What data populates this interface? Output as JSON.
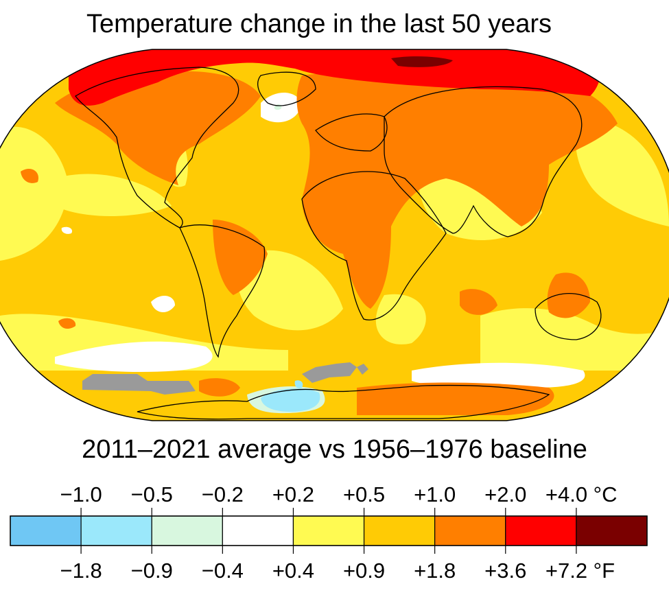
{
  "title": "Temperature change in the last 50 years",
  "subtitle": "2011–2021 average vs 1956–1976 baseline",
  "legend": {
    "celsius_labels": [
      "−1.0",
      "−0.5",
      "−0.2",
      "+0.2",
      "+0.5",
      "+1.0",
      "+2.0",
      "+4.0 °C"
    ],
    "fahrenheit_labels": [
      "−1.8",
      "−0.9",
      "−0.4",
      "+0.4",
      "+0.9",
      "+1.8",
      "+3.6",
      "+7.2 °F"
    ],
    "bins": [
      {
        "color": "#6fc7f4"
      },
      {
        "color": "#9be8fb"
      },
      {
        "color": "#d8f7df"
      },
      {
        "color": "#ffffff"
      },
      {
        "color": "#fffa52"
      },
      {
        "color": "#ffcb05"
      },
      {
        "color": "#ff7f00"
      },
      {
        "color": "#ff0000"
      },
      {
        "color": "#7a0000"
      }
    ]
  },
  "map_colors": {
    "ocean_base": "#ffcb05",
    "mild": "#fffa52",
    "strong": "#ff7f00",
    "extreme": "#ff0000",
    "max": "#7a0000",
    "neutral": "#ffffff",
    "slight_cool": "#d8f7df",
    "cool": "#9be8fb",
    "no_data": "#9a9a9a",
    "coastline": "#000000"
  }
}
